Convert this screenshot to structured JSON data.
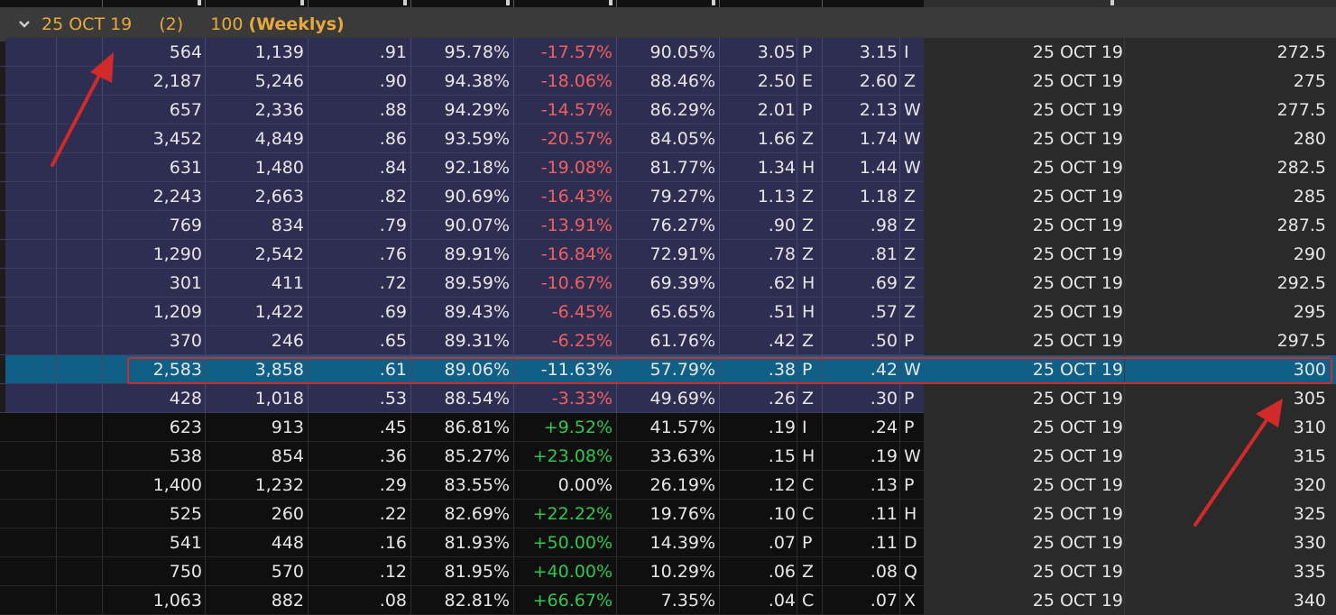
{
  "group": {
    "date": "25 OCT 19",
    "count": "(2)",
    "size": "100",
    "series": "(Weeklys)"
  },
  "colors": {
    "itm_row": "#2e2d52",
    "otm_row": "#0f0f0f",
    "selected_row": "#0f5f86",
    "right_pane": "#2a2a2a",
    "header_text": "#e8a93a",
    "negative": "#f06060",
    "positive": "#2ec84a",
    "annotation_red": "#d12a2a"
  },
  "selected_row_index": 11,
  "rows": [
    [
      "564",
      "1,139",
      ".91",
      "95.78%",
      "-17.57%",
      "90.05%",
      "3.05",
      "P",
      "3.15",
      "I",
      "25 OCT 19",
      "272.5"
    ],
    [
      "2,187",
      "5,246",
      ".90",
      "94.38%",
      "-18.06%",
      "88.46%",
      "2.50",
      "E",
      "2.60",
      "Z",
      "25 OCT 19",
      "275"
    ],
    [
      "657",
      "2,336",
      ".88",
      "94.29%",
      "-14.57%",
      "86.29%",
      "2.01",
      "P",
      "2.13",
      "W",
      "25 OCT 19",
      "277.5"
    ],
    [
      "3,452",
      "4,849",
      ".86",
      "93.59%",
      "-20.57%",
      "84.05%",
      "1.66",
      "Z",
      "1.74",
      "W",
      "25 OCT 19",
      "280"
    ],
    [
      "631",
      "1,480",
      ".84",
      "92.18%",
      "-19.08%",
      "81.77%",
      "1.34",
      "H",
      "1.44",
      "W",
      "25 OCT 19",
      "282.5"
    ],
    [
      "2,243",
      "2,663",
      ".82",
      "90.69%",
      "-16.43%",
      "79.27%",
      "1.13",
      "Z",
      "1.18",
      "Z",
      "25 OCT 19",
      "285"
    ],
    [
      "769",
      "834",
      ".79",
      "90.07%",
      "-13.91%",
      "76.27%",
      ".90",
      "Z",
      ".98",
      "Z",
      "25 OCT 19",
      "287.5"
    ],
    [
      "1,290",
      "2,542",
      ".76",
      "89.91%",
      "-16.84%",
      "72.91%",
      ".78",
      "Z",
      ".81",
      "Z",
      "25 OCT 19",
      "290"
    ],
    [
      "301",
      "411",
      ".72",
      "89.59%",
      "-10.67%",
      "69.39%",
      ".62",
      "H",
      ".69",
      "Z",
      "25 OCT 19",
      "292.5"
    ],
    [
      "1,209",
      "1,422",
      ".69",
      "89.43%",
      "-6.45%",
      "65.65%",
      ".51",
      "H",
      ".57",
      "Z",
      "25 OCT 19",
      "295"
    ],
    [
      "370",
      "246",
      ".65",
      "89.31%",
      "-6.25%",
      "61.76%",
      ".42",
      "Z",
      ".50",
      "P",
      "25 OCT 19",
      "297.5"
    ],
    [
      "2,583",
      "3,858",
      ".61",
      "89.06%",
      "-11.63%",
      "57.79%",
      ".38",
      "P",
      ".42",
      "W",
      "25 OCT 19",
      "300"
    ],
    [
      "428",
      "1,018",
      ".53",
      "88.54%",
      "-3.33%",
      "49.69%",
      ".26",
      "Z",
      ".30",
      "P",
      "25 OCT 19",
      "305"
    ],
    [
      "623",
      "913",
      ".45",
      "86.81%",
      "+9.52%",
      "41.57%",
      ".19",
      "I",
      ".24",
      "P",
      "25 OCT 19",
      "310"
    ],
    [
      "538",
      "854",
      ".36",
      "85.27%",
      "+23.08%",
      "33.63%",
      ".15",
      "H",
      ".19",
      "W",
      "25 OCT 19",
      "315"
    ],
    [
      "1,400",
      "1,232",
      ".29",
      "83.55%",
      "0.00%",
      "26.19%",
      ".12",
      "C",
      ".13",
      "P",
      "25 OCT 19",
      "320"
    ],
    [
      "525",
      "260",
      ".22",
      "82.69%",
      "+22.22%",
      "19.76%",
      ".10",
      "C",
      ".11",
      "H",
      "25 OCT 19",
      "325"
    ],
    [
      "541",
      "448",
      ".16",
      "81.93%",
      "+50.00%",
      "14.39%",
      ".07",
      "P",
      ".11",
      "D",
      "25 OCT 19",
      "330"
    ],
    [
      "750",
      "570",
      ".12",
      "81.95%",
      "+40.00%",
      "10.29%",
      ".06",
      "Z",
      ".08",
      "Q",
      "25 OCT 19",
      "335"
    ],
    [
      "1,063",
      "882",
      ".08",
      "82.81%",
      "+66.67%",
      "7.35%",
      ".04",
      "C",
      ".07",
      "X",
      "25 OCT 19",
      "340"
    ]
  ]
}
